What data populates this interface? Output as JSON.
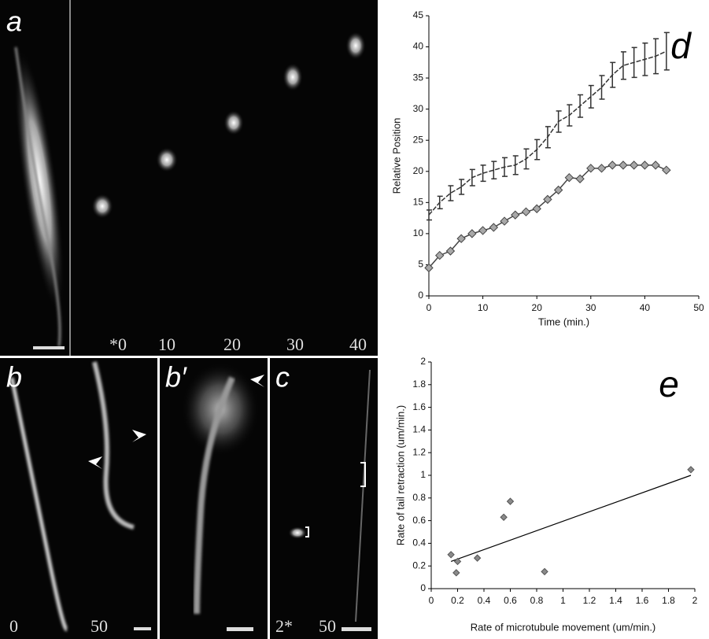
{
  "panels": [
    {
      "label": "a",
      "times": [
        "*0",
        "10",
        "20",
        "30",
        "40"
      ]
    },
    {
      "label": "b",
      "times": [
        "0",
        "50"
      ]
    },
    {
      "label": "b′"
    },
    {
      "label": "c",
      "times": [
        "2*",
        "50"
      ]
    }
  ],
  "chart_data": [
    {
      "type": "line",
      "title": "d",
      "xlabel": "Time (min.)",
      "ylabel": "Relative Position",
      "x": [
        0,
        2,
        4,
        6,
        8,
        10,
        12,
        14,
        16,
        18,
        20,
        22,
        24,
        26,
        28,
        30,
        32,
        34,
        36,
        38,
        40,
        42,
        44
      ],
      "series": [
        {
          "color": "#333333",
          "values": [
            13,
            15,
            16.5,
            17.5,
            19,
            19.7,
            20.2,
            20.7,
            21,
            22,
            23.5,
            25.5,
            28,
            29,
            30.5,
            32,
            33.5,
            35.5,
            37,
            37.5,
            38,
            38.5,
            39.3
          ],
          "errors": [
            0.8,
            1,
            1.2,
            1.2,
            1.3,
            1.3,
            1.4,
            1.5,
            1.5,
            1.6,
            1.6,
            1.7,
            1.7,
            1.7,
            1.8,
            1.8,
            1.9,
            2,
            2.2,
            2.4,
            2.6,
            2.8,
            3
          ]
        },
        {
          "color": "#444444",
          "marker_color": "#a8a8a8",
          "values": [
            4.5,
            6.5,
            7.2,
            9.2,
            10,
            10.5,
            11,
            12,
            13,
            13.5,
            14,
            15.5,
            17,
            19,
            18.8,
            20.5,
            20.5,
            21,
            21,
            21,
            21,
            21,
            20.2
          ]
        }
      ],
      "xlim": [
        0,
        50
      ],
      "xticks": [
        0,
        10,
        20,
        30,
        40,
        50
      ],
      "ylim": [
        0,
        45
      ],
      "yticks": [
        0,
        5,
        10,
        15,
        20,
        25,
        30,
        35,
        40,
        45
      ]
    },
    {
      "type": "scatter",
      "title": "e",
      "xlabel": "Rate of microtubule movement (um/min.)",
      "ylabel": "Rate of tail retraction (um/min.)",
      "x": [
        0.15,
        0.2,
        0.19,
        0.35,
        0.55,
        0.6,
        0.86,
        1.97
      ],
      "values": [
        0.3,
        0.24,
        0.14,
        0.27,
        0.63,
        0.77,
        0.15,
        1.05
      ],
      "color": "#8a8a8a",
      "trendline": {
        "x": [
          0.15,
          1.97
        ],
        "y": [
          0.24,
          1.0
        ]
      },
      "xlim": [
        0,
        2
      ],
      "xticks": [
        0,
        0.2,
        0.4,
        0.6,
        0.8,
        1,
        1.2,
        1.4,
        1.6,
        1.8,
        2
      ],
      "ylim": [
        0,
        2
      ],
      "yticks": [
        0,
        0.2,
        0.4,
        0.6,
        0.8,
        1,
        1.2,
        1.4,
        1.6,
        1.8,
        2
      ]
    }
  ]
}
